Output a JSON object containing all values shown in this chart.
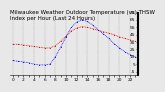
{
  "title": "Milwaukee Weather Outdoor Temperature (vs) THSW Index per Hour (Last 24 Hours)",
  "hours": [
    0,
    1,
    2,
    3,
    4,
    5,
    6,
    7,
    8,
    9,
    10,
    11,
    12,
    13,
    14,
    15,
    16,
    17,
    18,
    19,
    20,
    21,
    22,
    23
  ],
  "temp_f": [
    32,
    32,
    31,
    30,
    29,
    28,
    27,
    27,
    30,
    36,
    43,
    50,
    54,
    56,
    55,
    53,
    51,
    49,
    47,
    45,
    42,
    40,
    38,
    36
  ],
  "thsw_f": [
    10,
    9,
    8,
    7,
    5,
    4,
    4,
    5,
    15,
    28,
    42,
    55,
    62,
    65,
    63,
    58,
    52,
    46,
    40,
    33,
    27,
    22,
    18,
    15
  ],
  "temp_color": "#cc0000",
  "thsw_color": "#0000ee",
  "ylim_min": -10,
  "ylim_max": 75,
  "yticks": [
    75,
    65,
    55,
    45,
    35,
    25,
    15,
    5,
    -5
  ],
  "ytick_labels": [
    "75",
    "65",
    "55",
    "45",
    "35",
    "25",
    "15",
    "5",
    "-5"
  ],
  "bg_color": "#e8e8e8",
  "plot_bg": "#e8e8e8",
  "grid_color": "#888888",
  "title_fontsize": 4.0,
  "tick_fontsize": 3.2,
  "right_border_color": "#000000",
  "marker_size": 1.5,
  "line_width": 0.6
}
